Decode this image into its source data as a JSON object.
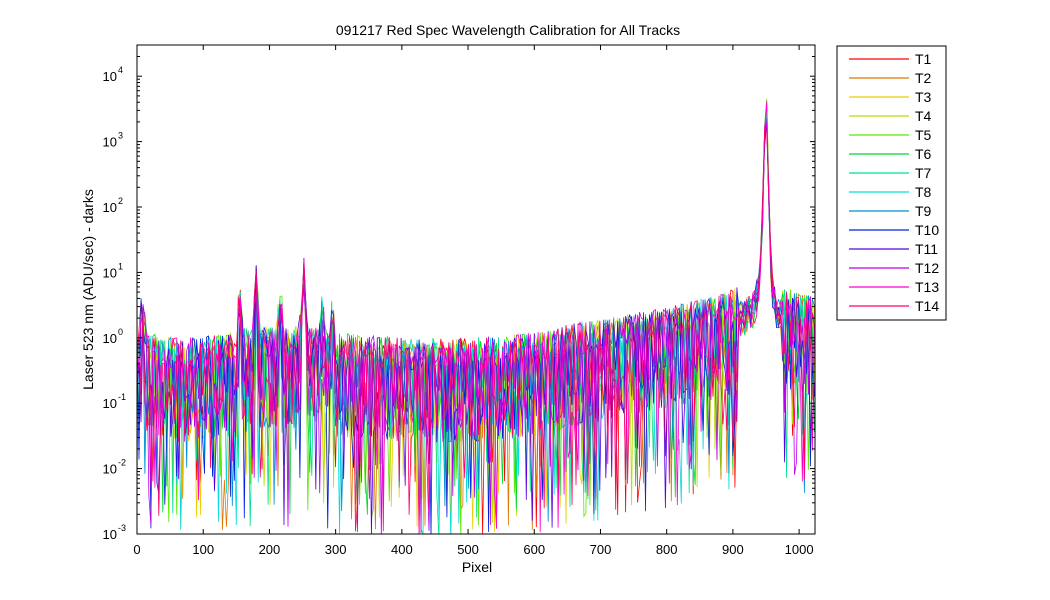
{
  "chart_data": {
    "type": "line",
    "title": "091217 Red Spec Wavelength Calibration for All Tracks",
    "xlabel": "Pixel",
    "ylabel": "Laser 523 nm (ADU/sec) - darks",
    "xlim": [
      0,
      1024
    ],
    "ylim": [
      0.001,
      30000
    ],
    "yscale": "log",
    "grid": false,
    "legend_position": "outside-right",
    "x_ticks": [
      0,
      100,
      200,
      300,
      400,
      500,
      600,
      700,
      800,
      900,
      1000
    ],
    "x_tick_labels": [
      "0",
      "100",
      "200",
      "300",
      "400",
      "500",
      "600",
      "700",
      "800",
      "900",
      "1000"
    ],
    "y_ticks": [
      0.001,
      0.01,
      0.1,
      1,
      10,
      100,
      1000,
      10000
    ],
    "y_tick_labels": [
      {
        "base": "10",
        "exp": "-3"
      },
      {
        "base": "10",
        "exp": "-2"
      },
      {
        "base": "10",
        "exp": "-1"
      },
      {
        "base": "10",
        "exp": "0"
      },
      {
        "base": "10",
        "exp": "1"
      },
      {
        "base": "10",
        "exp": "2"
      },
      {
        "base": "10",
        "exp": "3"
      },
      {
        "base": "10",
        "exp": "4"
      }
    ],
    "envelope": {
      "x": [
        0,
        5,
        7,
        10,
        15,
        60,
        150,
        155,
        160,
        175,
        180,
        185,
        210,
        217,
        222,
        245,
        252,
        258,
        275,
        280,
        285,
        290,
        295,
        300,
        400,
        500,
        600,
        650,
        700,
        750,
        800,
        850,
        880,
        900,
        920,
        930,
        935,
        940,
        944,
        947,
        950,
        953,
        956,
        960,
        965,
        975,
        1000,
        1024
      ],
      "y": [
        0.6,
        0.7,
        10,
        2,
        0.6,
        0.5,
        0.6,
        8,
        0.7,
        0.8,
        12,
        0.8,
        0.7,
        5,
        0.7,
        0.8,
        15,
        0.8,
        0.7,
        3,
        0.7,
        0.6,
        2.5,
        0.6,
        0.5,
        0.5,
        0.6,
        0.8,
        1.0,
        1.2,
        1.5,
        2.0,
        2.3,
        2.8,
        3.5,
        4.5,
        6,
        10,
        60,
        800,
        12000,
        600,
        40,
        8,
        4,
        3,
        2.5,
        2.2
      ]
    },
    "series": [
      {
        "name": "T1",
        "color": "#ff0000"
      },
      {
        "name": "T2",
        "color": "#e07800"
      },
      {
        "name": "T3",
        "color": "#e8d000"
      },
      {
        "name": "T4",
        "color": "#b4e000"
      },
      {
        "name": "T5",
        "color": "#5ce800"
      },
      {
        "name": "T6",
        "color": "#00d834"
      },
      {
        "name": "T7",
        "color": "#00e090"
      },
      {
        "name": "T8",
        "color": "#00dcdc"
      },
      {
        "name": "T9",
        "color": "#008ed8"
      },
      {
        "name": "T10",
        "color": "#0020e0"
      },
      {
        "name": "T11",
        "color": "#5a00e0"
      },
      {
        "name": "T12",
        "color": "#bc00e8"
      },
      {
        "name": "T13",
        "color": "#ff00d0"
      },
      {
        "name": "T14",
        "color": "#ff0070"
      }
    ]
  }
}
